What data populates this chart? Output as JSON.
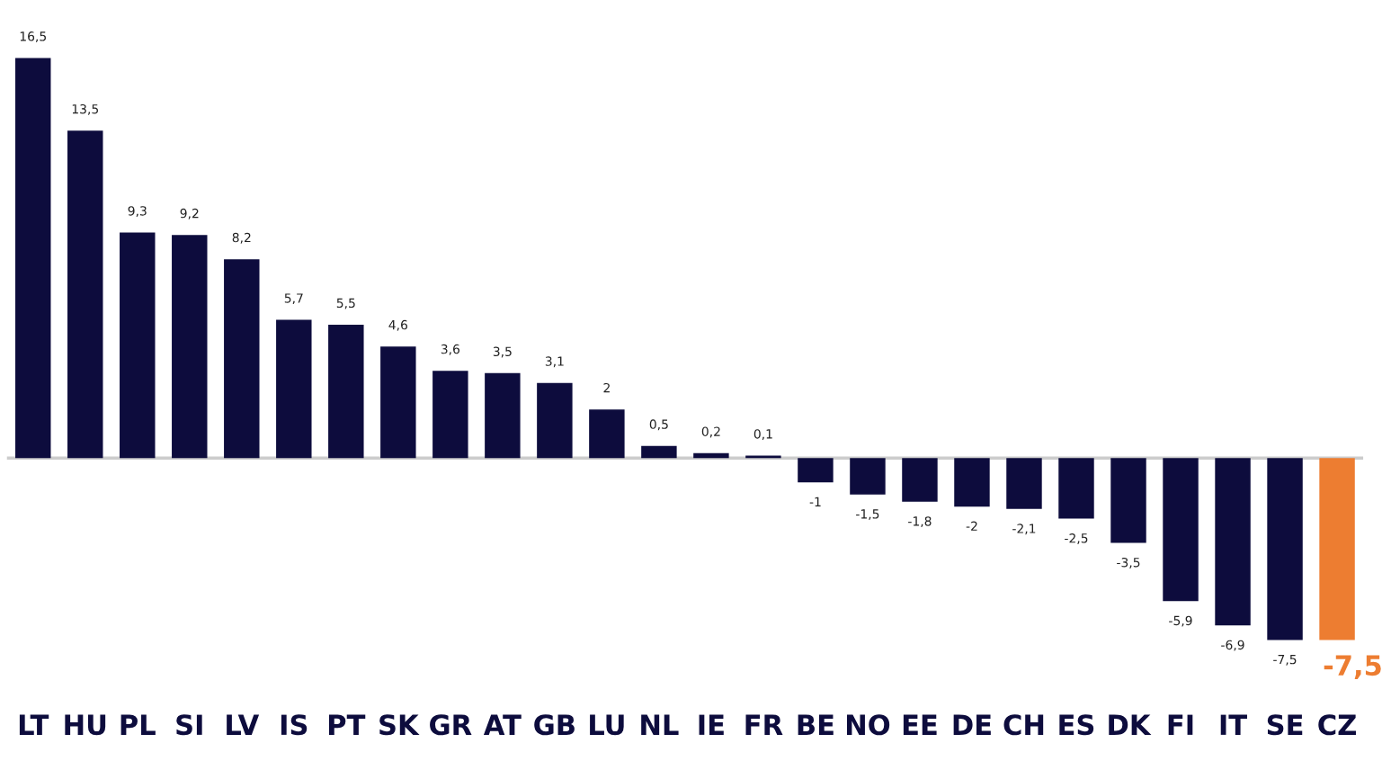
{
  "chart_data": {
    "type": "bar",
    "categories": [
      "LT",
      "HU",
      "PL",
      "SI",
      "LV",
      "IS",
      "PT",
      "SK",
      "GR",
      "AT",
      "GB",
      "LU",
      "NL",
      "IE",
      "FR",
      "BE",
      "NO",
      "EE",
      "DE",
      "CH",
      "ES",
      "DK",
      "FI",
      "IT",
      "SE",
      "CZ"
    ],
    "values": [
      16.5,
      13.5,
      9.3,
      9.2,
      8.2,
      5.7,
      5.5,
      4.6,
      3.6,
      3.5,
      3.1,
      2,
      0.5,
      0.2,
      0.1,
      -1,
      -1.5,
      -1.8,
      -2,
      -2.1,
      -2.5,
      -3.5,
      -5.9,
      -6.9,
      -7.5,
      -7.5
    ],
    "value_labels": [
      "16,5",
      "13,5",
      "9,3",
      "9,2",
      "8,2",
      "5,7",
      "5,5",
      "4,6",
      "3,6",
      "3,5",
      "3,1",
      "2",
      "0,5",
      "0,2",
      "0,1",
      "-1",
      "-1,5",
      "-1,8",
      "-2",
      "-2,1",
      "-2,5",
      "-3,5",
      "-5,9",
      "-6,9",
      "-7,5",
      "-7,5"
    ],
    "colors": [
      "#0d0c3d",
      "#0d0c3d",
      "#0d0c3d",
      "#0d0c3d",
      "#0d0c3d",
      "#0d0c3d",
      "#0d0c3d",
      "#0d0c3d",
      "#0d0c3d",
      "#0d0c3d",
      "#0d0c3d",
      "#0d0c3d",
      "#0d0c3d",
      "#0d0c3d",
      "#0d0c3d",
      "#0d0c3d",
      "#0d0c3d",
      "#0d0c3d",
      "#0d0c3d",
      "#0d0c3d",
      "#0d0c3d",
      "#0d0c3d",
      "#0d0c3d",
      "#0d0c3d",
      "#0d0c3d",
      "#ed7d31"
    ],
    "grid": false,
    "legend": false
  }
}
